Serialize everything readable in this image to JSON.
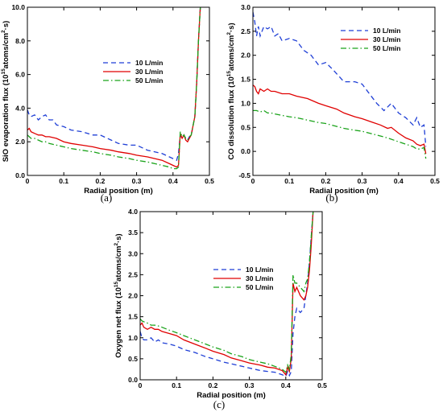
{
  "chart_data": [
    {
      "id": "a",
      "type": "line",
      "panel_label": "(a)",
      "xlabel": "Radial position (m)",
      "ylabel_prefix": "SiO evaporation flux (10",
      "ylabel_exp": "15",
      "ylabel_mid": "atoms/cm",
      "ylabel_exp2": "2",
      "ylabel_suffix": "·s)",
      "xlim": [
        0,
        0.5
      ],
      "ylim": [
        0,
        10
      ],
      "xticks": [
        "0",
        "0.1",
        "0.2",
        "0.3",
        "0.4",
        "0.5"
      ],
      "yticks": [
        "0.0",
        "2.0",
        "4.0",
        "6.0",
        "8.0",
        "10.0"
      ],
      "xtick_values": [
        0,
        0.1,
        0.2,
        0.3,
        0.4,
        0.5
      ],
      "ytick_values": [
        0,
        2,
        4,
        6,
        8,
        10
      ],
      "legend_position": "middle",
      "series": [
        {
          "name": "10 L/min",
          "color": "#1f3fd6",
          "style": "dashed",
          "x": [
            0,
            0.005,
            0.01,
            0.02,
            0.03,
            0.04,
            0.05,
            0.06,
            0.07,
            0.08,
            0.1,
            0.12,
            0.15,
            0.18,
            0.2,
            0.23,
            0.25,
            0.28,
            0.3,
            0.33,
            0.35,
            0.37,
            0.39,
            0.4,
            0.41,
            0.415,
            0.42,
            0.425,
            0.43,
            0.435,
            0.44,
            0.445,
            0.45,
            0.46,
            0.465,
            0.47,
            0.475
          ],
          "y": [
            3.9,
            3.6,
            3.5,
            3.6,
            3.3,
            3.5,
            3.6,
            3.3,
            3.3,
            3.0,
            2.9,
            2.7,
            2.6,
            2.4,
            2.4,
            2.1,
            1.9,
            1.8,
            1.8,
            1.5,
            1.4,
            1.3,
            1.1,
            1.0,
            0.9,
            1.3,
            2.4,
            2.2,
            2.4,
            2.2,
            2.1,
            2.3,
            2.4,
            3.5,
            5.5,
            8.0,
            10.0
          ]
        },
        {
          "name": "30 L/min",
          "color": "#e00000",
          "style": "solid",
          "x": [
            0,
            0.005,
            0.01,
            0.02,
            0.03,
            0.04,
            0.05,
            0.06,
            0.08,
            0.1,
            0.12,
            0.15,
            0.18,
            0.2,
            0.23,
            0.25,
            0.28,
            0.3,
            0.33,
            0.35,
            0.37,
            0.39,
            0.4,
            0.41,
            0.415,
            0.42,
            0.425,
            0.43,
            0.435,
            0.44,
            0.445,
            0.45,
            0.46,
            0.465,
            0.47,
            0.475
          ],
          "y": [
            2.7,
            2.8,
            2.6,
            2.5,
            2.4,
            2.4,
            2.3,
            2.3,
            2.2,
            2.0,
            1.9,
            1.8,
            1.7,
            1.6,
            1.5,
            1.4,
            1.3,
            1.2,
            1.1,
            1.0,
            0.9,
            0.7,
            0.6,
            0.5,
            0.6,
            2.5,
            2.2,
            2.4,
            2.1,
            2.0,
            2.2,
            2.4,
            3.5,
            5.5,
            8.0,
            10.0
          ]
        },
        {
          "name": "50 L/min",
          "color": "#1aa31a",
          "style": "dashdot",
          "x": [
            0,
            0.005,
            0.01,
            0.02,
            0.03,
            0.04,
            0.05,
            0.06,
            0.08,
            0.1,
            0.12,
            0.15,
            0.18,
            0.2,
            0.23,
            0.25,
            0.28,
            0.3,
            0.33,
            0.35,
            0.37,
            0.39,
            0.4,
            0.41,
            0.415,
            0.42,
            0.425,
            0.43,
            0.435,
            0.44,
            0.445,
            0.45,
            0.46,
            0.465,
            0.47,
            0.475
          ],
          "y": [
            2.4,
            2.3,
            2.2,
            2.2,
            2.1,
            2.0,
            2.0,
            1.9,
            1.8,
            1.7,
            1.6,
            1.5,
            1.4,
            1.3,
            1.2,
            1.1,
            1.0,
            0.9,
            0.8,
            0.7,
            0.6,
            0.5,
            0.4,
            0.4,
            0.5,
            2.6,
            2.3,
            2.4,
            2.2,
            2.1,
            2.3,
            2.4,
            3.5,
            5.5,
            8.0,
            10.0
          ]
        }
      ]
    },
    {
      "id": "b",
      "type": "line",
      "panel_label": "(b)",
      "xlabel": "Radial position (m)",
      "ylabel_prefix": "CO dissolution flux (10",
      "ylabel_exp": "15",
      "ylabel_mid": "atoms/cm",
      "ylabel_exp2": "2",
      "ylabel_suffix": "·s)",
      "xlim": [
        0,
        0.5
      ],
      "ylim": [
        -0.5,
        3.0
      ],
      "xticks": [
        "0",
        "0.1",
        "0.2",
        "0.3",
        "0.4",
        "0.5"
      ],
      "yticks": [
        "-0.5",
        "0.0",
        "0.5",
        "1.0",
        "1.5",
        "2.0",
        "2.5",
        "3.0"
      ],
      "xtick_values": [
        0,
        0.1,
        0.2,
        0.3,
        0.4,
        0.5
      ],
      "ytick_values": [
        -0.5,
        0,
        0.5,
        1.0,
        1.5,
        2.0,
        2.5,
        3.0
      ],
      "legend_position": "top-right",
      "series": [
        {
          "name": "10 L/min",
          "color": "#1f3fd6",
          "style": "dashed",
          "x": [
            0,
            0.005,
            0.01,
            0.015,
            0.02,
            0.03,
            0.04,
            0.05,
            0.06,
            0.07,
            0.08,
            0.1,
            0.12,
            0.14,
            0.16,
            0.18,
            0.2,
            0.22,
            0.25,
            0.28,
            0.3,
            0.32,
            0.34,
            0.36,
            0.38,
            0.4,
            0.42,
            0.44,
            0.45,
            0.46,
            0.47,
            0.475
          ],
          "y": [
            2.9,
            2.7,
            2.4,
            2.6,
            2.4,
            2.6,
            2.55,
            2.6,
            2.4,
            2.45,
            2.3,
            2.35,
            2.3,
            2.1,
            2.0,
            1.8,
            1.85,
            1.7,
            1.45,
            1.45,
            1.4,
            1.2,
            1.0,
            0.85,
            1.0,
            0.8,
            0.7,
            0.55,
            0.7,
            0.5,
            0.55,
            0.1
          ]
        },
        {
          "name": "30 L/min",
          "color": "#e00000",
          "style": "solid",
          "x": [
            0,
            0.005,
            0.01,
            0.015,
            0.02,
            0.03,
            0.04,
            0.05,
            0.06,
            0.08,
            0.1,
            0.12,
            0.15,
            0.18,
            0.2,
            0.23,
            0.25,
            0.28,
            0.3,
            0.33,
            0.35,
            0.37,
            0.38,
            0.4,
            0.42,
            0.44,
            0.45,
            0.46,
            0.47,
            0.475
          ],
          "y": [
            1.38,
            1.35,
            1.25,
            1.2,
            1.3,
            1.25,
            1.3,
            1.25,
            1.25,
            1.2,
            1.2,
            1.15,
            1.1,
            1.0,
            0.95,
            0.88,
            0.8,
            0.72,
            0.68,
            0.6,
            0.55,
            0.48,
            0.5,
            0.38,
            0.28,
            0.22,
            0.15,
            0.12,
            0.15,
            -0.05
          ]
        },
        {
          "name": "50 L/min",
          "color": "#1aa31a",
          "style": "dashdot",
          "x": [
            0,
            0.01,
            0.02,
            0.03,
            0.04,
            0.05,
            0.06,
            0.08,
            0.1,
            0.12,
            0.15,
            0.18,
            0.2,
            0.23,
            0.25,
            0.28,
            0.3,
            0.33,
            0.35,
            0.37,
            0.4,
            0.42,
            0.44,
            0.45,
            0.46,
            0.47,
            0.475
          ],
          "y": [
            0.85,
            0.85,
            0.82,
            0.85,
            0.8,
            0.8,
            0.78,
            0.75,
            0.72,
            0.7,
            0.65,
            0.6,
            0.58,
            0.52,
            0.48,
            0.44,
            0.42,
            0.36,
            0.32,
            0.28,
            0.2,
            0.15,
            0.1,
            0.05,
            0.05,
            0.08,
            -0.15
          ]
        }
      ]
    },
    {
      "id": "c",
      "type": "line",
      "panel_label": "(c)",
      "xlabel": "Radial position (m)",
      "ylabel_prefix": "Oxygen net flux (10",
      "ylabel_exp": "15",
      "ylabel_mid": "atoms/cm",
      "ylabel_exp2": "2",
      "ylabel_suffix": "·s)",
      "xlim": [
        0,
        0.5
      ],
      "ylim": [
        0,
        4.0
      ],
      "xticks": [
        "0",
        "0.1",
        "0.2",
        "0.3",
        "0.4",
        "0.5"
      ],
      "yticks": [
        "0.0",
        "0.5",
        "1.0",
        "1.5",
        "2.0",
        "2.5",
        "3.0",
        "3.5",
        "4.0"
      ],
      "xtick_values": [
        0,
        0.1,
        0.2,
        0.3,
        0.4,
        0.5
      ],
      "ytick_values": [
        0,
        0.5,
        1.0,
        1.5,
        2.0,
        2.5,
        3.0,
        3.5,
        4.0
      ],
      "legend_position": "middle",
      "series": [
        {
          "name": "10 L/min",
          "color": "#1f3fd6",
          "style": "dashed",
          "x": [
            0,
            0.005,
            0.01,
            0.02,
            0.03,
            0.04,
            0.05,
            0.06,
            0.08,
            0.1,
            0.12,
            0.15,
            0.18,
            0.2,
            0.23,
            0.25,
            0.28,
            0.3,
            0.33,
            0.35,
            0.37,
            0.39,
            0.4,
            0.405,
            0.41,
            0.415,
            0.42,
            0.425,
            0.43,
            0.44,
            0.45,
            0.46,
            0.465,
            0.47,
            0.475
          ],
          "y": [
            1.15,
            1.0,
            0.95,
            0.95,
            1.0,
            0.9,
            0.95,
            0.88,
            0.85,
            0.8,
            0.72,
            0.65,
            0.55,
            0.5,
            0.42,
            0.38,
            0.32,
            0.28,
            0.22,
            0.2,
            0.18,
            0.12,
            0.08,
            0.2,
            0.1,
            0.2,
            1.1,
            1.5,
            1.7,
            1.6,
            1.7,
            2.3,
            2.8,
            3.4,
            4.0
          ]
        },
        {
          "name": "30 L/min",
          "color": "#e00000",
          "style": "solid",
          "x": [
            0,
            0.005,
            0.01,
            0.02,
            0.03,
            0.04,
            0.05,
            0.06,
            0.08,
            0.1,
            0.12,
            0.15,
            0.18,
            0.2,
            0.23,
            0.25,
            0.28,
            0.3,
            0.33,
            0.35,
            0.37,
            0.39,
            0.4,
            0.405,
            0.41,
            0.415,
            0.42,
            0.425,
            0.43,
            0.44,
            0.45,
            0.455,
            0.46,
            0.465,
            0.47,
            0.475
          ],
          "y": [
            1.3,
            1.35,
            1.25,
            1.2,
            1.25,
            1.2,
            1.2,
            1.15,
            1.1,
            1.05,
            0.95,
            0.85,
            0.75,
            0.68,
            0.6,
            0.52,
            0.45,
            0.4,
            0.35,
            0.3,
            0.28,
            0.22,
            0.12,
            0.3,
            0.2,
            0.5,
            2.3,
            2.1,
            2.2,
            2.0,
            1.9,
            2.0,
            2.2,
            2.6,
            3.2,
            4.0
          ]
        },
        {
          "name": "50 L/min",
          "color": "#1aa31a",
          "style": "dashdot",
          "x": [
            0,
            0.005,
            0.01,
            0.02,
            0.03,
            0.04,
            0.05,
            0.06,
            0.08,
            0.1,
            0.12,
            0.15,
            0.18,
            0.2,
            0.23,
            0.25,
            0.28,
            0.3,
            0.33,
            0.35,
            0.37,
            0.39,
            0.4,
            0.405,
            0.41,
            0.415,
            0.42,
            0.425,
            0.43,
            0.44,
            0.45,
            0.455,
            0.46,
            0.465,
            0.47,
            0.475
          ],
          "y": [
            1.45,
            1.4,
            1.38,
            1.35,
            1.3,
            1.3,
            1.28,
            1.25,
            1.18,
            1.12,
            1.05,
            0.95,
            0.85,
            0.78,
            0.7,
            0.62,
            0.55,
            0.48,
            0.42,
            0.38,
            0.32,
            0.25,
            0.18,
            0.35,
            0.25,
            0.6,
            2.5,
            2.3,
            2.3,
            2.2,
            2.1,
            2.3,
            2.4,
            2.8,
            3.4,
            4.0
          ]
        }
      ]
    }
  ]
}
